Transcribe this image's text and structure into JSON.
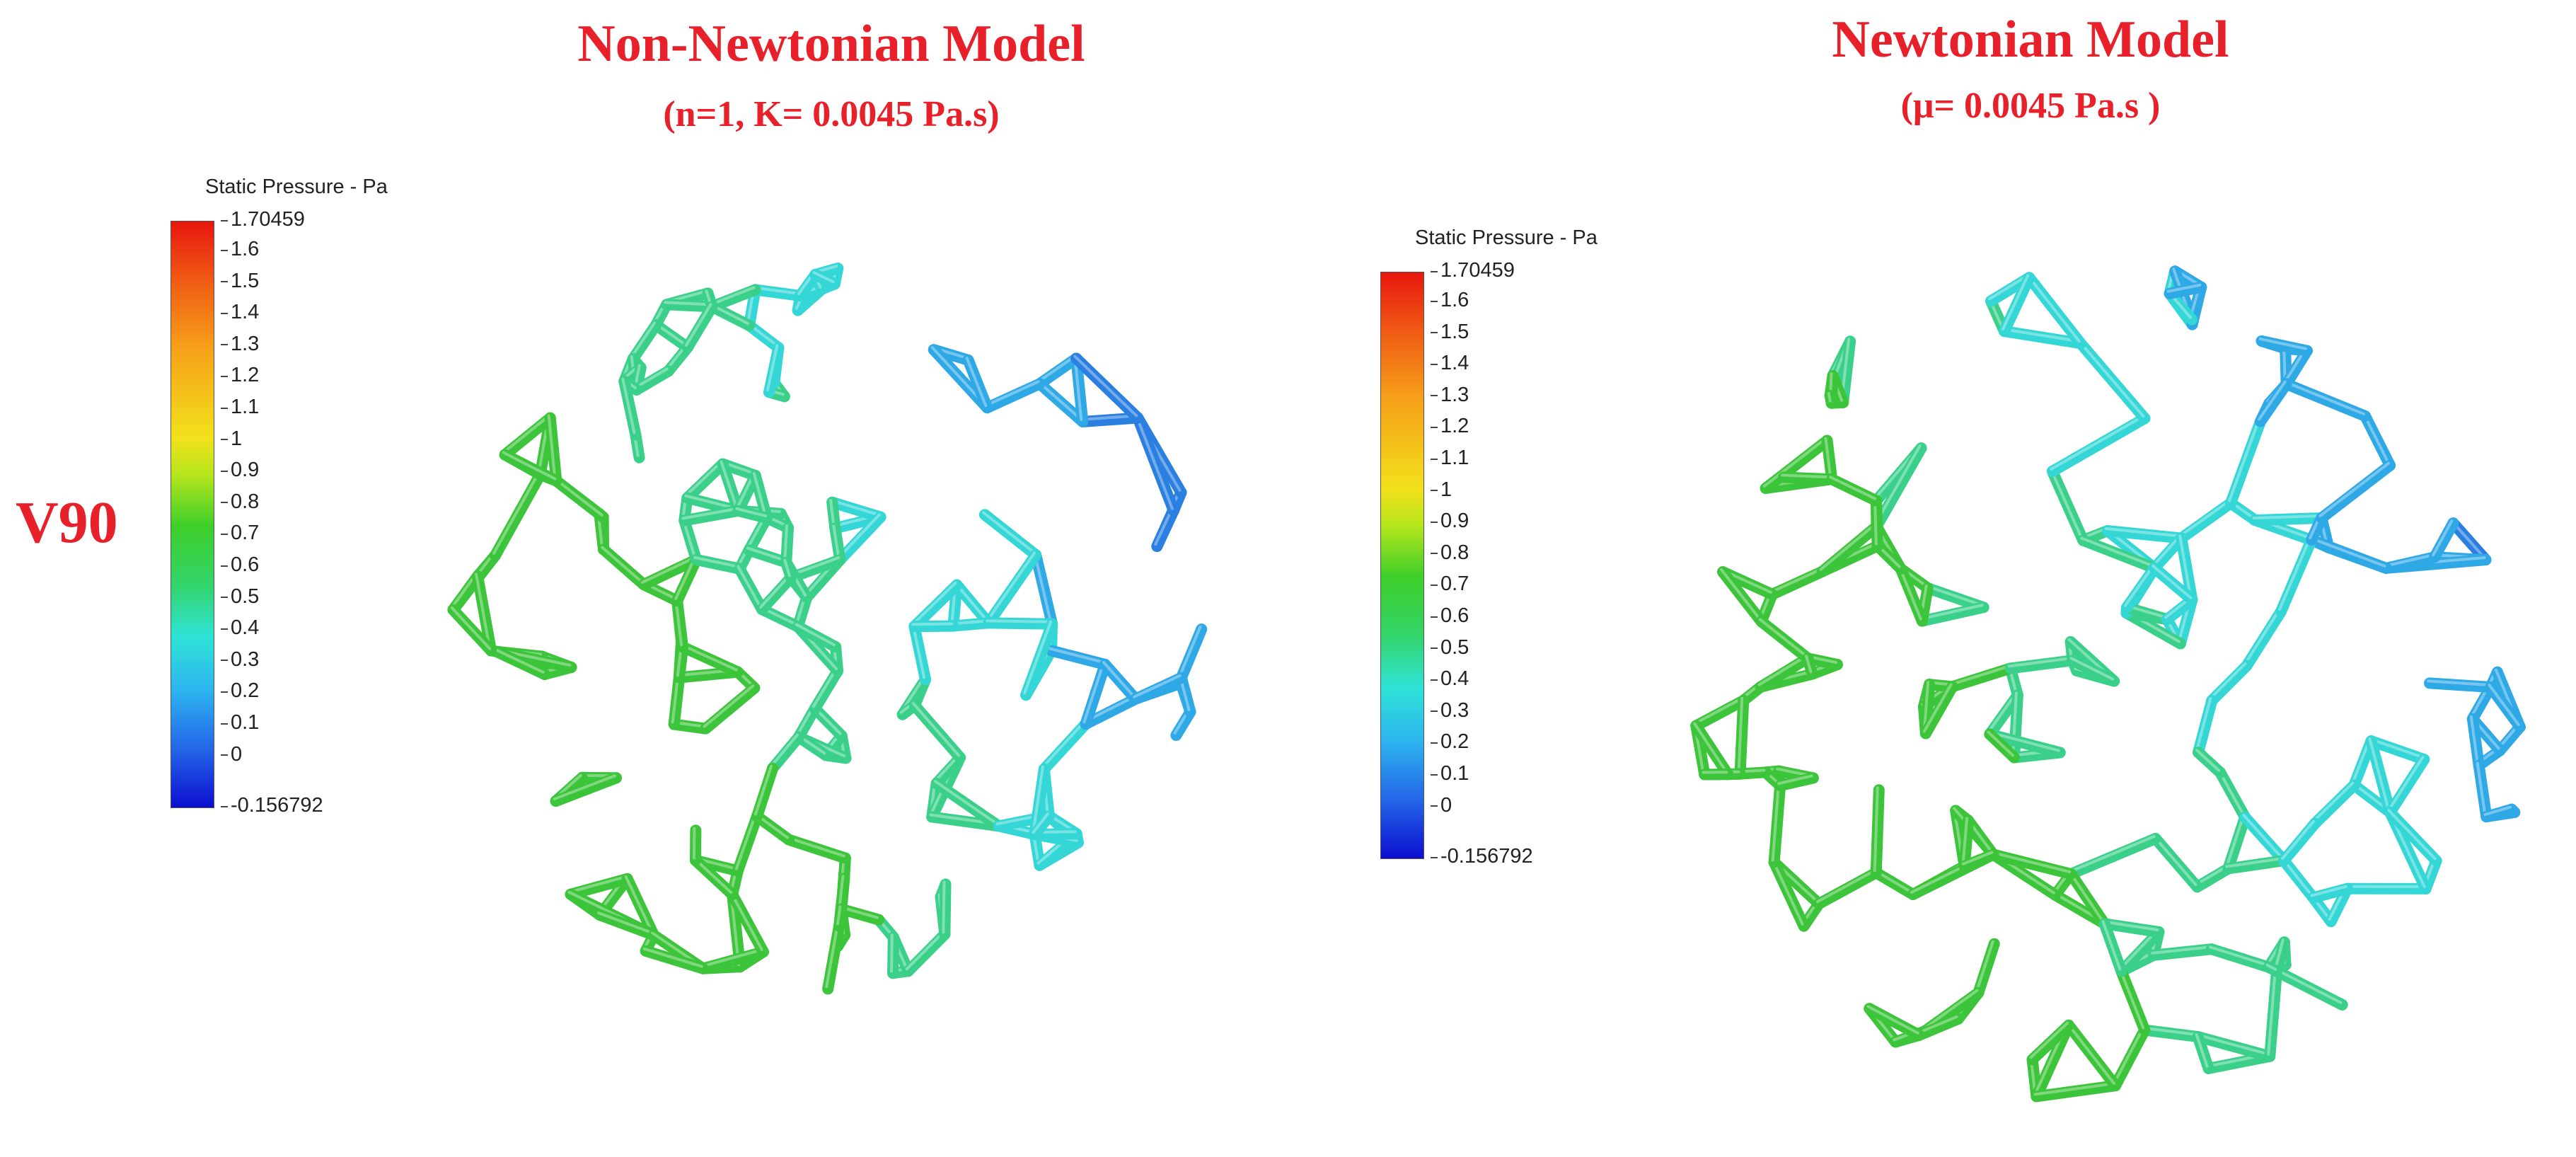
{
  "panels": [
    {
      "title": "Non-Newtonian Model",
      "subtitle": "(n=1, K= 0.0045 Pa.s)",
      "legend": {
        "title": "Static Pressure - Pa",
        "max": "1.70459",
        "min": "-0.156792",
        "ticks": [
          "1.6",
          "1.5",
          "1.4",
          "1.3",
          "1.2",
          "1.1",
          "1",
          "0.9",
          "0.8",
          "0.7",
          "0.6",
          "0.5",
          "0.4",
          "0.3",
          "0.2",
          "0.1",
          "0"
        ]
      }
    },
    {
      "title": "Newtonian Model",
      "subtitle": "(μ= 0.0045 Pa.s )",
      "legend": {
        "title": "Static Pressure - Pa",
        "max": "1.70459",
        "min": "-0.156792",
        "ticks": [
          "1.6",
          "1.5",
          "1.4",
          "1.3",
          "1.2",
          "1.1",
          "1",
          "0.9",
          "0.8",
          "0.7",
          "0.6",
          "0.5",
          "0.4",
          "0.3",
          "0.2",
          "0.1",
          "0"
        ]
      }
    }
  ],
  "row_label": "V90",
  "colors": {
    "title_red": "#e8202a",
    "scaffold_green": "#3cc43a",
    "scaffold_cyan": "#34d6d6",
    "scaffold_blue": "#2a7fe0"
  }
}
